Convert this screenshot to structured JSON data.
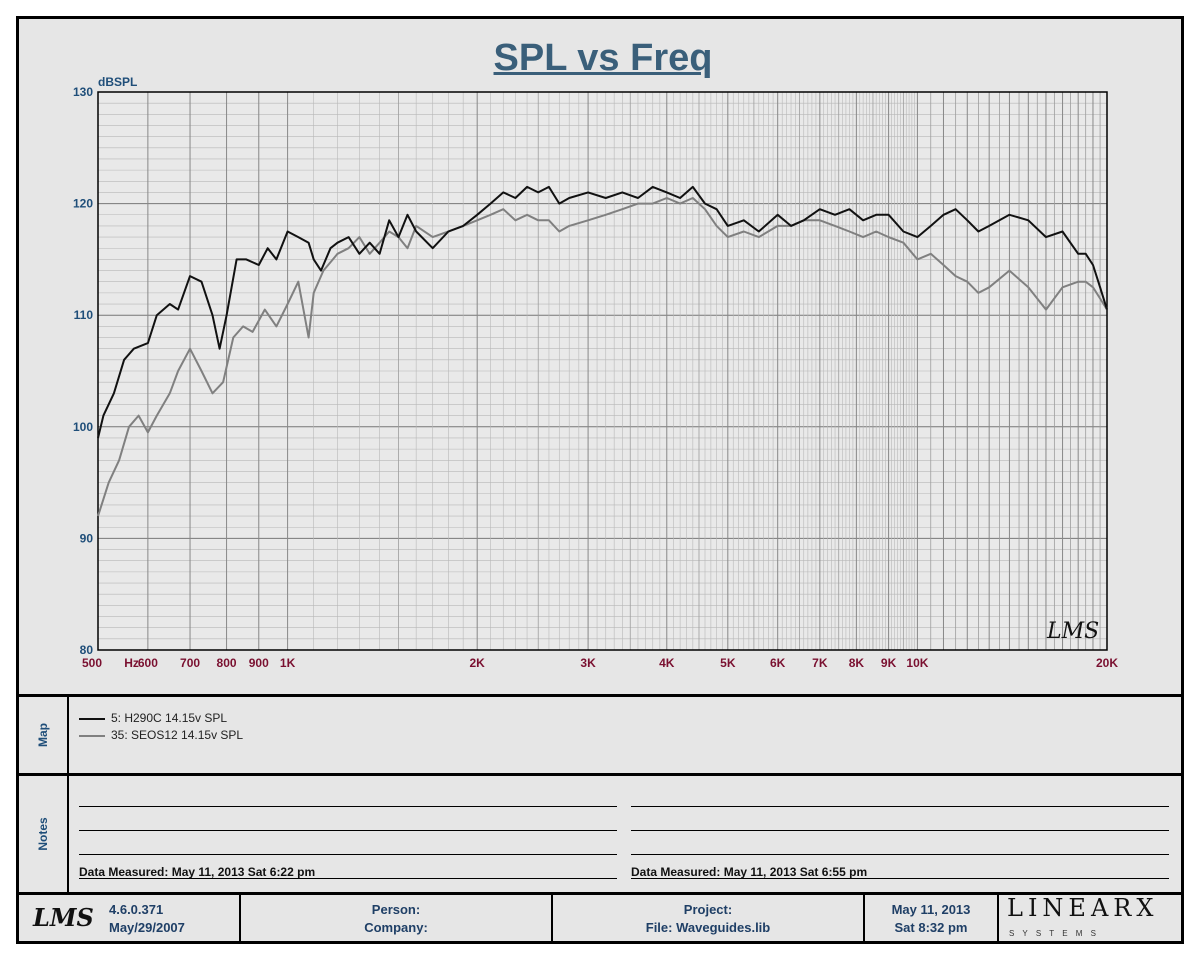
{
  "title": "SPL vs Freq",
  "chart_data": {
    "type": "line",
    "title": "SPL vs Freq",
    "ylabel": "dBSPL",
    "xlabel": "Hz",
    "x_scale": "log",
    "xlim": [
      500,
      20000
    ],
    "ylim": [
      80,
      130
    ],
    "y_ticks": [
      80,
      90,
      100,
      110,
      120,
      130
    ],
    "x_tick_labels": [
      {
        "v": 500,
        "t": "500"
      },
      {
        "v": 600,
        "t": "600"
      },
      {
        "v": 700,
        "t": "700"
      },
      {
        "v": 800,
        "t": "800"
      },
      {
        "v": 900,
        "t": "900"
      },
      {
        "v": 1000,
        "t": "1K"
      },
      {
        "v": 2000,
        "t": "2K"
      },
      {
        "v": 3000,
        "t": "3K"
      },
      {
        "v": 4000,
        "t": "4K"
      },
      {
        "v": 5000,
        "t": "5K"
      },
      {
        "v": 6000,
        "t": "6K"
      },
      {
        "v": 7000,
        "t": "7K"
      },
      {
        "v": 8000,
        "t": "8K"
      },
      {
        "v": 9000,
        "t": "9K"
      },
      {
        "v": 10000,
        "t": "10K"
      },
      {
        "v": 20000,
        "t": "20K"
      }
    ],
    "x_unit_label": "Hz",
    "grid": true,
    "watermark": "LMS",
    "series": [
      {
        "name": "5: H290C 14.15v SPL",
        "color": "#111111",
        "points": [
          [
            500,
            99
          ],
          [
            510,
            101
          ],
          [
            530,
            103
          ],
          [
            550,
            106
          ],
          [
            570,
            107
          ],
          [
            600,
            107.5
          ],
          [
            620,
            110
          ],
          [
            650,
            111
          ],
          [
            670,
            110.5
          ],
          [
            700,
            113.5
          ],
          [
            730,
            113
          ],
          [
            760,
            110
          ],
          [
            780,
            107
          ],
          [
            800,
            110
          ],
          [
            830,
            115
          ],
          [
            860,
            115
          ],
          [
            900,
            114.5
          ],
          [
            930,
            116
          ],
          [
            960,
            115
          ],
          [
            1000,
            117.5
          ],
          [
            1040,
            117
          ],
          [
            1080,
            116.5
          ],
          [
            1100,
            115
          ],
          [
            1130,
            114
          ],
          [
            1170,
            116
          ],
          [
            1200,
            116.5
          ],
          [
            1250,
            117
          ],
          [
            1300,
            115.5
          ],
          [
            1350,
            116.5
          ],
          [
            1400,
            115.5
          ],
          [
            1450,
            118.5
          ],
          [
            1500,
            117
          ],
          [
            1550,
            119
          ],
          [
            1600,
            117.5
          ],
          [
            1700,
            116
          ],
          [
            1800,
            117.5
          ],
          [
            1900,
            118
          ],
          [
            2000,
            119
          ],
          [
            2100,
            120
          ],
          [
            2200,
            121
          ],
          [
            2300,
            120.5
          ],
          [
            2400,
            121.5
          ],
          [
            2500,
            121
          ],
          [
            2600,
            121.5
          ],
          [
            2700,
            120
          ],
          [
            2800,
            120.5
          ],
          [
            3000,
            121
          ],
          [
            3200,
            120.5
          ],
          [
            3400,
            121
          ],
          [
            3600,
            120.5
          ],
          [
            3800,
            121.5
          ],
          [
            4000,
            121
          ],
          [
            4200,
            120.5
          ],
          [
            4400,
            121.5
          ],
          [
            4600,
            120
          ],
          [
            4800,
            119.5
          ],
          [
            5000,
            118
          ],
          [
            5300,
            118.5
          ],
          [
            5600,
            117.5
          ],
          [
            6000,
            119
          ],
          [
            6300,
            118
          ],
          [
            6600,
            118.5
          ],
          [
            7000,
            119.5
          ],
          [
            7400,
            119
          ],
          [
            7800,
            119.5
          ],
          [
            8200,
            118.5
          ],
          [
            8600,
            119
          ],
          [
            9000,
            119
          ],
          [
            9500,
            117.5
          ],
          [
            10000,
            117
          ],
          [
            10500,
            118
          ],
          [
            11000,
            119
          ],
          [
            11500,
            119.5
          ],
          [
            12000,
            118.5
          ],
          [
            12500,
            117.5
          ],
          [
            13000,
            118
          ],
          [
            14000,
            119
          ],
          [
            15000,
            118.5
          ],
          [
            16000,
            117
          ],
          [
            17000,
            117.5
          ],
          [
            18000,
            115.5
          ],
          [
            18500,
            115.5
          ],
          [
            19000,
            114.5
          ],
          [
            19500,
            112.5
          ],
          [
            20000,
            110.5
          ]
        ]
      },
      {
        "name": "35: SEOS12 14.15v SPL",
        "color": "#808080",
        "points": [
          [
            500,
            92
          ],
          [
            520,
            95
          ],
          [
            540,
            97
          ],
          [
            560,
            100
          ],
          [
            580,
            101
          ],
          [
            600,
            99.5
          ],
          [
            620,
            101
          ],
          [
            650,
            103
          ],
          [
            670,
            105
          ],
          [
            700,
            107
          ],
          [
            730,
            105
          ],
          [
            760,
            103
          ],
          [
            790,
            104
          ],
          [
            820,
            108
          ],
          [
            850,
            109
          ],
          [
            880,
            108.5
          ],
          [
            920,
            110.5
          ],
          [
            960,
            109
          ],
          [
            1000,
            111
          ],
          [
            1040,
            113
          ],
          [
            1080,
            108
          ],
          [
            1100,
            112
          ],
          [
            1140,
            114
          ],
          [
            1180,
            115
          ],
          [
            1200,
            115.5
          ],
          [
            1250,
            116
          ],
          [
            1300,
            117
          ],
          [
            1350,
            115.5
          ],
          [
            1400,
            116.5
          ],
          [
            1450,
            117.5
          ],
          [
            1500,
            117
          ],
          [
            1550,
            116
          ],
          [
            1600,
            118
          ],
          [
            1700,
            117
          ],
          [
            1800,
            117.5
          ],
          [
            1900,
            118
          ],
          [
            2000,
            118.5
          ],
          [
            2100,
            119
          ],
          [
            2200,
            119.5
          ],
          [
            2300,
            118.5
          ],
          [
            2400,
            119
          ],
          [
            2500,
            118.5
          ],
          [
            2600,
            118.5
          ],
          [
            2700,
            117.5
          ],
          [
            2800,
            118
          ],
          [
            3000,
            118.5
          ],
          [
            3200,
            119
          ],
          [
            3400,
            119.5
          ],
          [
            3600,
            120
          ],
          [
            3800,
            120
          ],
          [
            4000,
            120.5
          ],
          [
            4200,
            120
          ],
          [
            4400,
            120.5
          ],
          [
            4600,
            119.5
          ],
          [
            4800,
            118
          ],
          [
            5000,
            117
          ],
          [
            5300,
            117.5
          ],
          [
            5600,
            117
          ],
          [
            6000,
            118
          ],
          [
            6300,
            118
          ],
          [
            6600,
            118.5
          ],
          [
            7000,
            118.5
          ],
          [
            7400,
            118
          ],
          [
            7800,
            117.5
          ],
          [
            8200,
            117
          ],
          [
            8600,
            117.5
          ],
          [
            9000,
            117
          ],
          [
            9500,
            116.5
          ],
          [
            10000,
            115
          ],
          [
            10500,
            115.5
          ],
          [
            11000,
            114.5
          ],
          [
            11500,
            113.5
          ],
          [
            12000,
            113
          ],
          [
            12500,
            112
          ],
          [
            13000,
            112.5
          ],
          [
            14000,
            114
          ],
          [
            15000,
            112.5
          ],
          [
            16000,
            110.5
          ],
          [
            17000,
            112.5
          ],
          [
            18000,
            113
          ],
          [
            18500,
            113
          ],
          [
            19000,
            112.5
          ],
          [
            19500,
            111.5
          ],
          [
            20000,
            110.5
          ]
        ]
      }
    ]
  },
  "map": {
    "label": "Map",
    "entries": [
      "5: H290C 14.15v SPL",
      "35: SEOS12 14.15v SPL"
    ]
  },
  "notes": {
    "label": "Notes",
    "left_measured": "Data Measured: May 11, 2013  Sat  6:22 pm",
    "right_measured": "Data Measured: May 11, 2013  Sat  6:55 pm"
  },
  "footer": {
    "logo": "LMS",
    "version": "4.6.0.371",
    "version_date": "May/29/2007",
    "person_label": "Person:",
    "company_label": "Company:",
    "project_label": "Project:",
    "file_label": "File: Waveguides.lib",
    "date": "May 11, 2013",
    "time": "Sat  8:32 pm",
    "brand": "LINEARX",
    "brand_sub": "S Y S T E M S"
  }
}
